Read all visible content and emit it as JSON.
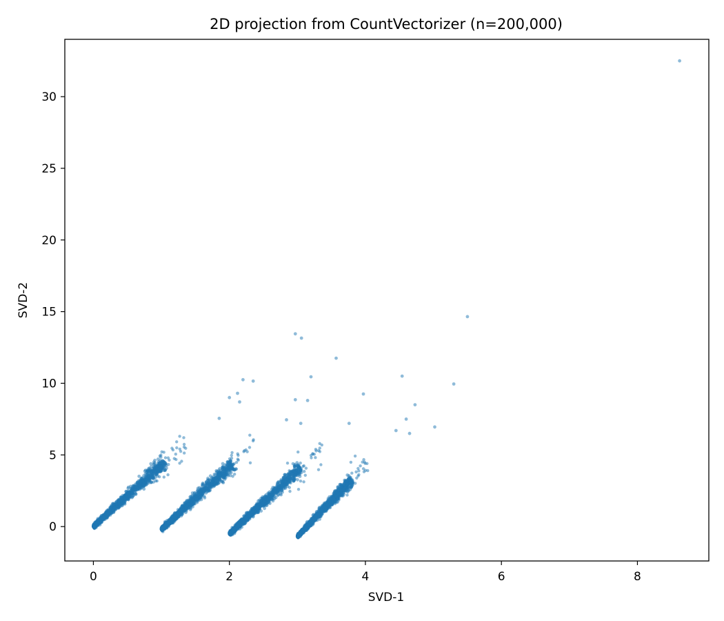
{
  "chart_data": {
    "type": "scatter",
    "title": "2D projection from CountVectorizer (n=200,000)",
    "xlabel": "SVD-1",
    "ylabel": "SVD-2",
    "xlim": [
      -0.42,
      9.05
    ],
    "ylim": [
      -2.4,
      34.0
    ],
    "xticks": [
      0,
      2,
      4,
      6,
      8
    ],
    "yticks": [
      0,
      5,
      10,
      15,
      20,
      25,
      30
    ],
    "xtick_labels": [
      "0",
      "2",
      "4",
      "6",
      "8"
    ],
    "ytick_labels": [
      "0",
      "5",
      "10",
      "15",
      "20",
      "25",
      "30"
    ],
    "grid": false,
    "legend": false,
    "point_color": "#1f77b4",
    "point_alpha": 0.5,
    "clusters": [
      {
        "x_start": 0.0,
        "y_start": 0.0,
        "x_end": 1.05,
        "y_end": 4.5,
        "spread": 0.3
      },
      {
        "x_start": 1.0,
        "y_start": -0.2,
        "x_end": 2.05,
        "y_end": 4.4,
        "spread": 0.3
      },
      {
        "x_start": 2.0,
        "y_start": -0.5,
        "x_end": 3.05,
        "y_end": 4.1,
        "spread": 0.3
      },
      {
        "x_start": 3.0,
        "y_start": -0.7,
        "x_end": 3.8,
        "y_end": 3.3,
        "spread": 0.25
      }
    ],
    "outliers": [
      {
        "x": 8.62,
        "y": 32.5
      },
      {
        "x": 5.5,
        "y": 14.65
      },
      {
        "x": 2.97,
        "y": 13.45
      },
      {
        "x": 3.06,
        "y": 13.15
      },
      {
        "x": 3.57,
        "y": 11.75
      },
      {
        "x": 4.54,
        "y": 10.5
      },
      {
        "x": 3.2,
        "y": 10.45
      },
      {
        "x": 2.2,
        "y": 10.25
      },
      {
        "x": 2.35,
        "y": 10.15
      },
      {
        "x": 5.3,
        "y": 9.95
      },
      {
        "x": 2.12,
        "y": 9.3
      },
      {
        "x": 3.97,
        "y": 9.25
      },
      {
        "x": 2.0,
        "y": 9.0
      },
      {
        "x": 3.15,
        "y": 8.8
      },
      {
        "x": 2.97,
        "y": 8.85
      },
      {
        "x": 4.73,
        "y": 8.5
      },
      {
        "x": 2.15,
        "y": 8.7
      },
      {
        "x": 4.6,
        "y": 7.5
      },
      {
        "x": 3.05,
        "y": 7.2
      },
      {
        "x": 5.02,
        "y": 6.95
      },
      {
        "x": 4.45,
        "y": 6.7
      },
      {
        "x": 4.65,
        "y": 6.5
      },
      {
        "x": 1.85,
        "y": 7.55
      },
      {
        "x": 2.84,
        "y": 7.45
      },
      {
        "x": 3.76,
        "y": 7.2
      }
    ]
  }
}
